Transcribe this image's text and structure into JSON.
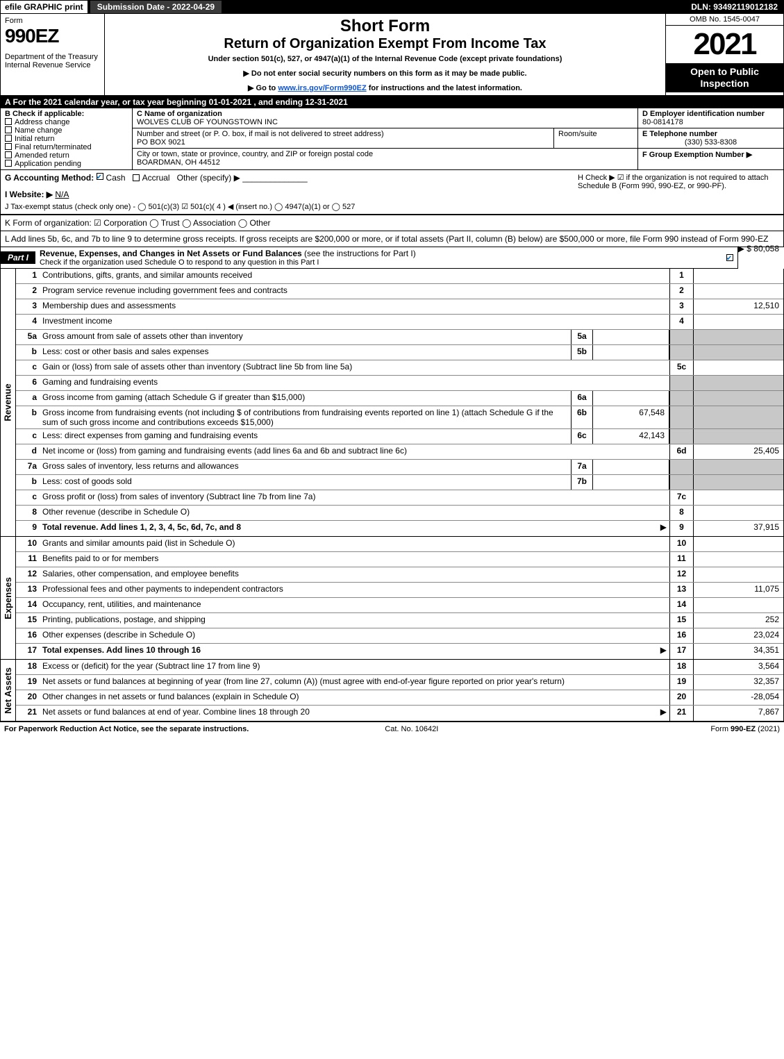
{
  "topbar": {
    "efile": "efile GRAPHIC print",
    "subdate": "Submission Date - 2022-04-29",
    "dln": "DLN: 93492119012182"
  },
  "header": {
    "form": "Form",
    "num": "990EZ",
    "dept": "Department of the Treasury\nInternal Revenue Service",
    "short": "Short Form",
    "rtn": "Return of Organization Exempt From Income Tax",
    "under": "Under section 501(c), 527, or 4947(a)(1) of the Internal Revenue Code (except private foundations)",
    "arrow1": "▶ Do not enter social security numbers on this form as it may be made public.",
    "arrow2_pre": "▶ Go to ",
    "arrow2_link": "www.irs.gov/Form990EZ",
    "arrow2_post": " for instructions and the latest information.",
    "omb": "OMB No. 1545-0047",
    "year": "2021",
    "open": "Open to Public Inspection"
  },
  "rowA": "A  For the 2021 calendar year, or tax year beginning 01-01-2021 , and ending 12-31-2021",
  "b": {
    "label": "B  Check if applicable:",
    "items": [
      "Address change",
      "Name change",
      "Initial return",
      "Final return/terminated",
      "Amended return",
      "Application pending"
    ],
    "c_label": "C Name of organization",
    "c_name": "WOLVES CLUB OF YOUNGSTOWN INC",
    "street_label": "Number and street (or P. O. box, if mail is not delivered to street address)",
    "street": "PO BOX 9021",
    "room_label": "Room/suite",
    "city_label": "City or town, state or province, country, and ZIP or foreign postal code",
    "city": "BOARDMAN, OH  44512",
    "d_label": "D Employer identification number",
    "ein": "80-0814178",
    "e_label": "E Telephone number",
    "tel": "(330) 533-8308",
    "f_label": "F Group Exemption Number  ▶"
  },
  "g": {
    "label": "G Accounting Method:",
    "cash": "Cash",
    "accrual": "Accrual",
    "other": "Other (specify) ▶"
  },
  "h": "H  Check ▶ ☑ if the organization is not required to attach Schedule B (Form 990, 990-EZ, or 990-PF).",
  "i": {
    "label": "I Website: ▶",
    "val": "N/A"
  },
  "j": "J Tax-exempt status (check only one) - ◯ 501(c)(3)  ☑ 501(c)( 4 ) ◀ (insert no.)  ◯ 4947(a)(1) or  ◯ 527",
  "k": "K Form of organization:  ☑ Corporation  ◯ Trust  ◯ Association  ◯ Other",
  "l": {
    "text": "L Add lines 5b, 6c, and 7b to line 9 to determine gross receipts. If gross receipts are $200,000 or more, or if total assets (Part II, column (B) below) are $500,000 or more, file Form 990 instead of Form 990-EZ",
    "amt": "▶ $ 80,058"
  },
  "part1": {
    "tag": "Part I",
    "title": "Revenue, Expenses, and Changes in Net Assets or Fund Balances",
    "sub": "(see the instructions for Part I)",
    "sub2": "Check if the organization used Schedule O to respond to any question in this Part I"
  },
  "revenue": [
    {
      "n": "1",
      "d": "Contributions, gifts, grants, and similar amounts received",
      "rn": "1",
      "rv": ""
    },
    {
      "n": "2",
      "d": "Program service revenue including government fees and contracts",
      "rn": "2",
      "rv": ""
    },
    {
      "n": "3",
      "d": "Membership dues and assessments",
      "rn": "3",
      "rv": "12,510"
    },
    {
      "n": "4",
      "d": "Investment income",
      "rn": "4",
      "rv": ""
    },
    {
      "n": "5a",
      "d": "Gross amount from sale of assets other than inventory",
      "mn": "5a",
      "mv": "",
      "shade": true
    },
    {
      "n": "b",
      "d": "Less: cost or other basis and sales expenses",
      "mn": "5b",
      "mv": "",
      "shade": true
    },
    {
      "n": "c",
      "d": "Gain or (loss) from sale of assets other than inventory (Subtract line 5b from line 5a)",
      "rn": "5c",
      "rv": ""
    },
    {
      "n": "6",
      "d": "Gaming and fundraising events",
      "shade": true,
      "noright": true
    },
    {
      "n": "a",
      "d": "Gross income from gaming (attach Schedule G if greater than $15,000)",
      "mn": "6a",
      "mv": "",
      "shade": true
    },
    {
      "n": "b",
      "d": "Gross income from fundraising events (not including $                    of contributions from fundraising events reported on line 1) (attach Schedule G if the sum of such gross income and contributions exceeds $15,000)",
      "mn": "6b",
      "mv": "67,548",
      "shade": true
    },
    {
      "n": "c",
      "d": "Less: direct expenses from gaming and fundraising events",
      "mn": "6c",
      "mv": "42,143",
      "shade": true
    },
    {
      "n": "d",
      "d": "Net income or (loss) from gaming and fundraising events (add lines 6a and 6b and subtract line 6c)",
      "rn": "6d",
      "rv": "25,405"
    },
    {
      "n": "7a",
      "d": "Gross sales of inventory, less returns and allowances",
      "mn": "7a",
      "mv": "",
      "shade": true
    },
    {
      "n": "b",
      "d": "Less: cost of goods sold",
      "mn": "7b",
      "mv": "",
      "shade": true
    },
    {
      "n": "c",
      "d": "Gross profit or (loss) from sales of inventory (Subtract line 7b from line 7a)",
      "rn": "7c",
      "rv": ""
    },
    {
      "n": "8",
      "d": "Other revenue (describe in Schedule O)",
      "rn": "8",
      "rv": ""
    },
    {
      "n": "9",
      "d": "Total revenue. Add lines 1, 2, 3, 4, 5c, 6d, 7c, and 8",
      "rn": "9",
      "rv": "37,915",
      "bold": true,
      "arrow": true
    }
  ],
  "expenses": [
    {
      "n": "10",
      "d": "Grants and similar amounts paid (list in Schedule O)",
      "rn": "10",
      "rv": ""
    },
    {
      "n": "11",
      "d": "Benefits paid to or for members",
      "rn": "11",
      "rv": ""
    },
    {
      "n": "12",
      "d": "Salaries, other compensation, and employee benefits",
      "rn": "12",
      "rv": ""
    },
    {
      "n": "13",
      "d": "Professional fees and other payments to independent contractors",
      "rn": "13",
      "rv": "11,075"
    },
    {
      "n": "14",
      "d": "Occupancy, rent, utilities, and maintenance",
      "rn": "14",
      "rv": ""
    },
    {
      "n": "15",
      "d": "Printing, publications, postage, and shipping",
      "rn": "15",
      "rv": "252"
    },
    {
      "n": "16",
      "d": "Other expenses (describe in Schedule O)",
      "rn": "16",
      "rv": "23,024"
    },
    {
      "n": "17",
      "d": "Total expenses. Add lines 10 through 16",
      "rn": "17",
      "rv": "34,351",
      "bold": true,
      "arrow": true
    }
  ],
  "netassets": [
    {
      "n": "18",
      "d": "Excess or (deficit) for the year (Subtract line 17 from line 9)",
      "rn": "18",
      "rv": "3,564"
    },
    {
      "n": "19",
      "d": "Net assets or fund balances at beginning of year (from line 27, column (A)) (must agree with end-of-year figure reported on prior year's return)",
      "rn": "19",
      "rv": "32,357"
    },
    {
      "n": "20",
      "d": "Other changes in net assets or fund balances (explain in Schedule O)",
      "rn": "20",
      "rv": "-28,054"
    },
    {
      "n": "21",
      "d": "Net assets or fund balances at end of year. Combine lines 18 through 20",
      "rn": "21",
      "rv": "7,867",
      "arrow": true
    }
  ],
  "vlabels": {
    "rev": "Revenue",
    "exp": "Expenses",
    "na": "Net Assets"
  },
  "footer": {
    "l": "For Paperwork Reduction Act Notice, see the separate instructions.",
    "m": "Cat. No. 10642I",
    "r": "Form 990-EZ (2021)"
  }
}
